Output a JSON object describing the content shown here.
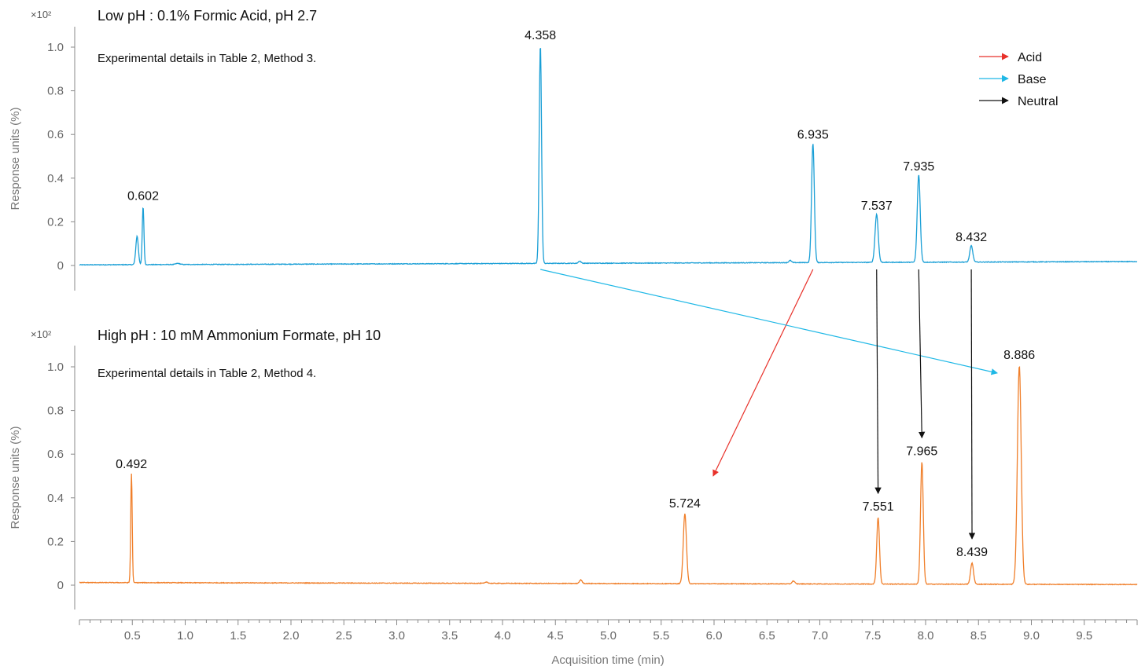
{
  "chart_data": {
    "type": "line",
    "x_axis": {
      "label": "Acquisition time (min)",
      "range": [
        0.0,
        10.0
      ],
      "ticks": [
        "0.5",
        "1.0",
        "1.5",
        "2.0",
        "2.5",
        "3.0",
        "3.5",
        "4.0",
        "4.5",
        "5.0",
        "5.5",
        "6.0",
        "6.5",
        "7.0",
        "7.5",
        "8.0",
        "8.5",
        "9.0",
        "9.5"
      ]
    },
    "panels": [
      {
        "title": "Low pH : 0.1% Formic Acid, pH 2.7",
        "note": "Experimental details in Table 2, Method 3.",
        "multiplier": "×10²",
        "ylabel": "Response units (%)",
        "yticks": [
          "0",
          "0.2",
          "0.4",
          "0.6",
          "0.8",
          "1.0"
        ],
        "ylim": [
          0,
          1.0
        ],
        "color": "#1a9fd6",
        "baseline": 0.003,
        "baseline_end": 0.018,
        "peaks": [
          {
            "label": "",
            "rt": 0.545,
            "height": 0.13,
            "width": 0.012
          },
          {
            "label": "0.602",
            "rt": 0.602,
            "height": 0.265,
            "width": 0.008
          },
          {
            "label": "",
            "rt": 0.93,
            "height": 0.005,
            "width": 0.02
          },
          {
            "label": "4.358",
            "rt": 4.358,
            "height": 1.0,
            "width": 0.011
          },
          {
            "label": "",
            "rt": 4.73,
            "height": 0.01,
            "width": 0.012
          },
          {
            "label": "",
            "rt": 6.72,
            "height": 0.01,
            "width": 0.012
          },
          {
            "label": "6.935",
            "rt": 6.935,
            "height": 0.545,
            "width": 0.013
          },
          {
            "label": "7.537",
            "rt": 7.537,
            "height": 0.22,
            "width": 0.015
          },
          {
            "label": "7.935",
            "rt": 7.935,
            "height": 0.4,
            "width": 0.014
          },
          {
            "label": "8.432",
            "rt": 8.432,
            "height": 0.075,
            "width": 0.014
          }
        ]
      },
      {
        "title": "High pH : 10 mM Ammonium Formate, pH 10",
        "note": "Experimental details in Table 2, Method 4.",
        "multiplier": "×10²",
        "ylabel": "Response units (%)",
        "yticks": [
          "0",
          "0.2",
          "0.4",
          "0.6",
          "0.8",
          "1.0"
        ],
        "ylim": [
          0,
          1.0
        ],
        "color": "#f07f2a",
        "baseline": 0.012,
        "baseline_end": 0.003,
        "peaks": [
          {
            "label": "0.492",
            "rt": 0.492,
            "height": 0.5,
            "width": 0.007
          },
          {
            "label": "",
            "rt": 3.85,
            "height": 0.006,
            "width": 0.012
          },
          {
            "label": "",
            "rt": 4.74,
            "height": 0.016,
            "width": 0.013
          },
          {
            "label": "5.724",
            "rt": 5.724,
            "height": 0.32,
            "width": 0.015
          },
          {
            "label": "",
            "rt": 6.75,
            "height": 0.013,
            "width": 0.013
          },
          {
            "label": "7.551",
            "rt": 7.551,
            "height": 0.305,
            "width": 0.013
          },
          {
            "label": "7.965",
            "rt": 7.965,
            "height": 0.56,
            "width": 0.013
          },
          {
            "label": "8.439",
            "rt": 8.439,
            "height": 0.097,
            "width": 0.014
          },
          {
            "label": "8.886",
            "rt": 8.886,
            "height": 1.0,
            "width": 0.018
          }
        ]
      }
    ],
    "legend": {
      "placement": "top-right of top panel",
      "items": [
        {
          "label": "Acid",
          "color": "#e8312a"
        },
        {
          "label": "Base",
          "color": "#1fb8e6"
        },
        {
          "label": "Neutral",
          "color": "#111111"
        }
      ]
    },
    "shift_arrows": [
      {
        "type": "Acid",
        "from_rt": 6.935,
        "to_rt": 5.724
      },
      {
        "type": "Base",
        "from_rt": 4.358,
        "to_rt": 8.886
      },
      {
        "type": "Neutral",
        "from_rt": 7.537,
        "to_rt": 7.551
      },
      {
        "type": "Neutral",
        "from_rt": 7.935,
        "to_rt": 7.965
      },
      {
        "type": "Neutral",
        "from_rt": 8.432,
        "to_rt": 8.439
      }
    ]
  }
}
